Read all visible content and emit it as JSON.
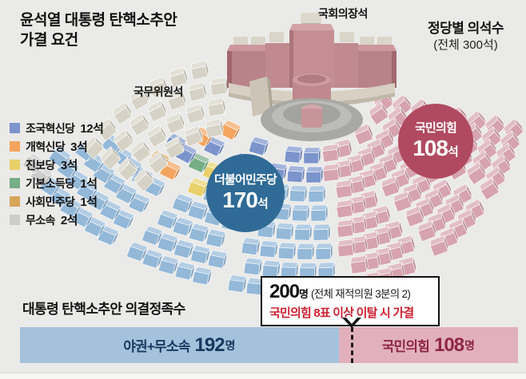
{
  "title": {
    "line1": "윤석열 대통령 탄핵소추안",
    "line2": "가결 요건"
  },
  "right_subtitle": {
    "line1": "정당별 의석수",
    "line2": "(전체 300석)"
  },
  "labels": {
    "speaker_seat": "국회의장석",
    "cabinet_seats": "국무위원석"
  },
  "legend": [
    {
      "name": "조국혁신당",
      "value": "12석",
      "color": "#7b94cb"
    },
    {
      "name": "개혁신당",
      "value": "3석",
      "color": "#f4a45f"
    },
    {
      "name": "진보당",
      "value": "3석",
      "color": "#e9d069"
    },
    {
      "name": "기본소득당",
      "value": "1석",
      "color": "#76ae85"
    },
    {
      "name": "사회민주당",
      "value": "1석",
      "color": "#d8a559"
    },
    {
      "name": "무소속",
      "value": "2석",
      "color": "#cccccb"
    }
  ],
  "badges": {
    "dem": {
      "name": "더불어민주당",
      "number": "170",
      "unit": "석",
      "color": "#2f6b96"
    },
    "ppp": {
      "name": "국민의힘",
      "number": "108",
      "unit": "석",
      "color": "#b04a60"
    }
  },
  "bottom": {
    "heading": "대통령 탄핵소추안 의결정족수",
    "bar": {
      "left_label": "야권+무소속",
      "left_number": "192",
      "left_unit": "명",
      "right_label": "국민의힘",
      "right_number": "108",
      "right_unit": "명",
      "left_color": "#a5c2dd",
      "right_color": "#e2b0bc",
      "left_text_color": "#16395f",
      "right_text_color": "#8e2746"
    },
    "callout": {
      "number": "200",
      "number_unit": "명",
      "paren": "(전체 재적의원 3분의 2)",
      "line2": "국민의힘 8표 이상 이탈 시 가결",
      "line2_color": "#cd2031"
    }
  },
  "chart_data": {
    "type": "parliament",
    "title": "정당별 의석수 (전체 300석)",
    "total_seats": 300,
    "parties": [
      {
        "name": "더불어민주당",
        "seats": 170,
        "color": "#93b8d8"
      },
      {
        "name": "국민의힘",
        "seats": 108,
        "color": "#d6a3af"
      },
      {
        "name": "조국혁신당",
        "seats": 12,
        "color": "#7b94cb"
      },
      {
        "name": "개혁신당",
        "seats": 3,
        "color": "#f4a45f"
      },
      {
        "name": "진보당",
        "seats": 3,
        "color": "#e9d069"
      },
      {
        "name": "기본소득당",
        "seats": 1,
        "color": "#76ae85"
      },
      {
        "name": "사회민주당",
        "seats": 1,
        "color": "#d8a559"
      },
      {
        "name": "무소속",
        "seats": 2,
        "color": "#cccccb"
      }
    ],
    "quorum": {
      "needed": 200,
      "needed_note": "전체 재적의원 3분의 2",
      "pass_condition": "국민의힘 8표 이상 이탈 시 가결",
      "opposition_plus_independents": 192,
      "ppp": 108
    }
  }
}
